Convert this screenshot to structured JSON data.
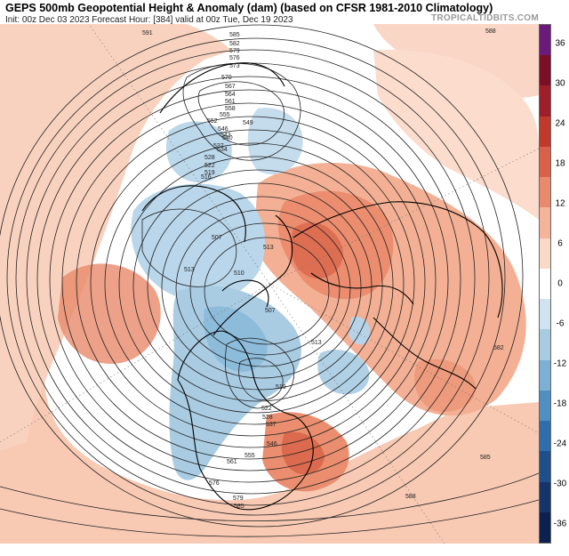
{
  "header": {
    "title": "GEPS 500mb Geopotential Height & Anomaly (dam) (based on CFSR 1981-2010 Climatology)",
    "subtitle": "Init: 00z Dec 03 2023   Forecast Hour: [384]   valid at 00z Tue, Dec 19 2023",
    "watermark": "TROPICALTIDBITS.COM"
  },
  "colorbar": {
    "ticks": [
      "36",
      "30",
      "24",
      "18",
      "12",
      "6",
      "0",
      "-6",
      "-12",
      "-18",
      "-24",
      "-30",
      "-36"
    ],
    "colors": [
      "#6a1a7a",
      "#7a0f25",
      "#9e1e2a",
      "#c0392b",
      "#d9614a",
      "#ea8a6c",
      "#f5b499",
      "#fbd9c8",
      "#ffffff",
      "#cfe3f0",
      "#a8cbe2",
      "#7db0d5",
      "#4f8fc2",
      "#2f6eaa",
      "#1e4f8a",
      "#15356a",
      "#0d2150"
    ]
  },
  "contours": {
    "labels": [
      "591",
      "585",
      "582",
      "579",
      "576",
      "573",
      "570",
      "567",
      "564",
      "561",
      "558",
      "555",
      "552",
      "549",
      "546",
      "543",
      "540",
      "537",
      "534",
      "528",
      "522",
      "519",
      "516",
      "513",
      "510",
      "507",
      "588"
    ]
  }
}
